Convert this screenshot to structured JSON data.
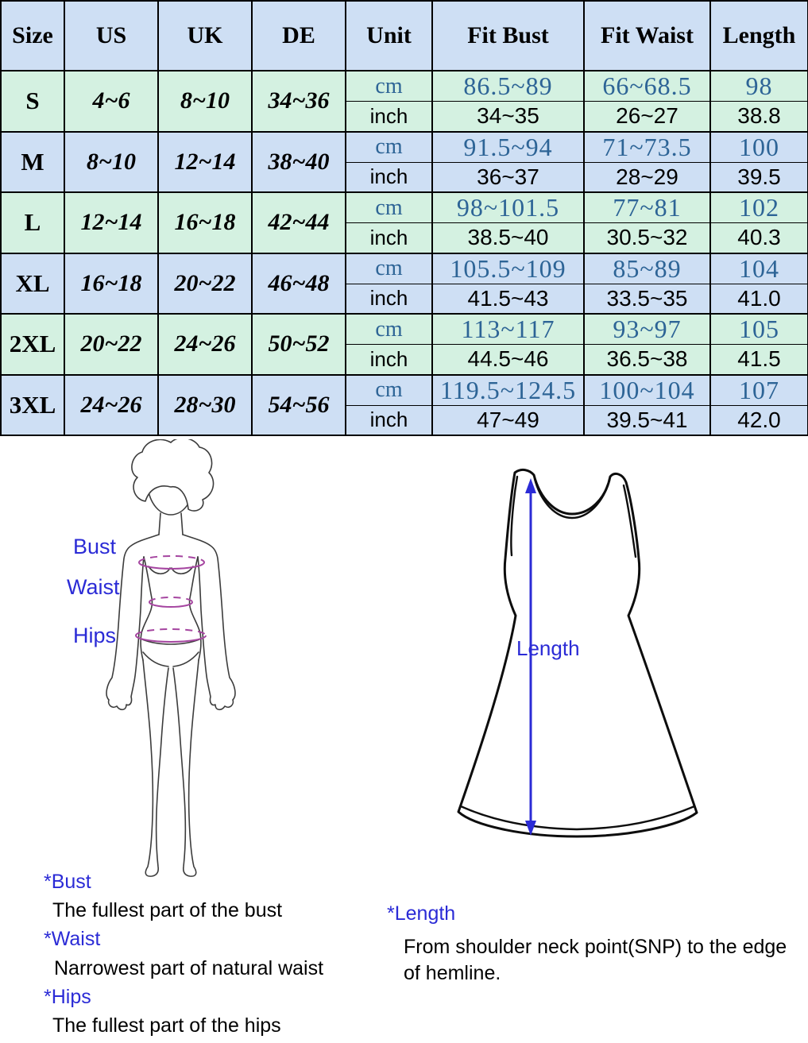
{
  "colors": {
    "band_green": "#d4f1e1",
    "band_blue": "#cedff4",
    "cm_blue": "#2d6496",
    "label_blue": "#2b2bd6",
    "measure_purple": "#a545a0"
  },
  "table": {
    "headers": [
      "Size",
      "US",
      "UK",
      "DE",
      "Unit",
      "Fit Bust",
      "Fit Waist",
      "Length"
    ],
    "unit_labels": {
      "cm": "cm",
      "inch": "inch"
    },
    "rows": [
      {
        "size": "S",
        "us": "4~6",
        "uk": "8~10",
        "de": "34~36",
        "cm": {
          "bust": "86.5~89",
          "waist": "66~68.5",
          "length": "98"
        },
        "inch": {
          "bust": "34~35",
          "waist": "26~27",
          "length": "38.8"
        }
      },
      {
        "size": "M",
        "us": "8~10",
        "uk": "12~14",
        "de": "38~40",
        "cm": {
          "bust": "91.5~94",
          "waist": "71~73.5",
          "length": "100"
        },
        "inch": {
          "bust": "36~37",
          "waist": "28~29",
          "length": "39.5"
        }
      },
      {
        "size": "L",
        "us": "12~14",
        "uk": "16~18",
        "de": "42~44",
        "cm": {
          "bust": "98~101.5",
          "waist": "77~81",
          "length": "102"
        },
        "inch": {
          "bust": "38.5~40",
          "waist": "30.5~32",
          "length": "40.3"
        }
      },
      {
        "size": "XL",
        "us": "16~18",
        "uk": "20~22",
        "de": "46~48",
        "cm": {
          "bust": "105.5~109",
          "waist": "85~89",
          "length": "104"
        },
        "inch": {
          "bust": "41.5~43",
          "waist": "33.5~35",
          "length": "41.0"
        }
      },
      {
        "size": "2XL",
        "us": "20~22",
        "uk": "24~26",
        "de": "50~52",
        "cm": {
          "bust": "113~117",
          "waist": "93~97",
          "length": "105"
        },
        "inch": {
          "bust": "44.5~46",
          "waist": "36.5~38",
          "length": "41.5"
        }
      },
      {
        "size": "3XL",
        "us": "24~26",
        "uk": "28~30",
        "de": "54~56",
        "cm": {
          "bust": "119.5~124.5",
          "waist": "100~104",
          "length": "107"
        },
        "inch": {
          "bust": "47~49",
          "waist": "39.5~41",
          "length": "42.0"
        }
      }
    ]
  },
  "body_diagram": {
    "bust_label": "Bust",
    "waist_label": "Waist",
    "hips_label": "Hips"
  },
  "dress_diagram": {
    "length_label": "Length"
  },
  "notes": {
    "left": [
      {
        "title": "*Bust",
        "desc": "The fullest part of the bust"
      },
      {
        "title": "*Waist",
        "desc": "Narrowest part of natural waist"
      },
      {
        "title": "*Hips",
        "desc": "The fullest part of the hips"
      }
    ],
    "right": {
      "title": "*Length",
      "desc_line1": "From shoulder neck point(SNP) to the edge",
      "desc_line2": "of hemline."
    }
  }
}
